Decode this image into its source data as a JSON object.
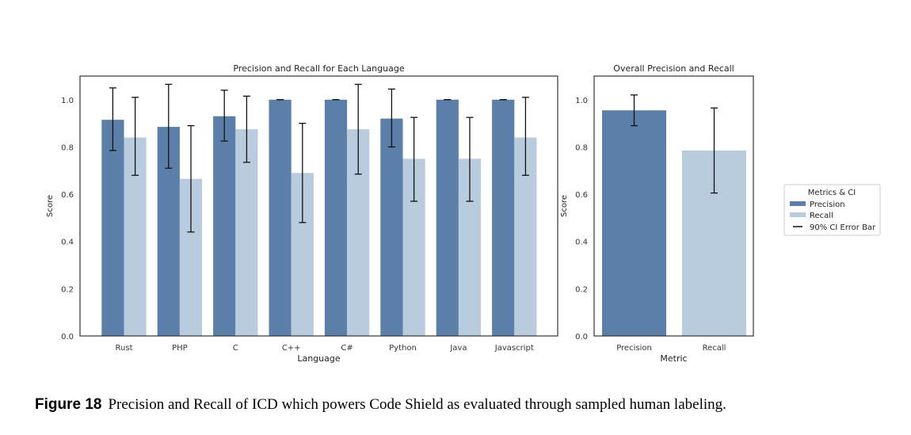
{
  "colors": {
    "precision": "#5b7fa8",
    "recall": "#b9ccdd",
    "error_bar": "#111111",
    "frame": "#333333"
  },
  "caption": {
    "label": "Figure 18",
    "text": "Precision and Recall of ICD which powers Code Shield as evaluated through sampled human labeling."
  },
  "chart_data": [
    {
      "type": "bar",
      "title": "Precision and Recall for Each Language",
      "xlabel": "Language",
      "ylabel": "Score",
      "ylim": [
        0,
        1.1
      ],
      "yticks": [
        "0.0",
        "0.2",
        "0.4",
        "0.6",
        "0.8",
        "1.0"
      ],
      "categories": [
        "Rust",
        "PHP",
        "C",
        "C++",
        "C#",
        "Python",
        "Java",
        "Javascript"
      ],
      "series": [
        {
          "name": "Precision",
          "values": [
            0.915,
            0.885,
            0.93,
            1.0,
            1.0,
            0.92,
            1.0,
            1.0
          ],
          "ci_low": [
            0.785,
            0.71,
            0.825,
            1.0,
            1.0,
            0.8,
            1.0,
            1.0
          ],
          "ci_high": [
            1.05,
            1.065,
            1.04,
            1.0,
            1.0,
            1.045,
            1.0,
            1.0
          ]
        },
        {
          "name": "Recall",
          "values": [
            0.84,
            0.665,
            0.875,
            0.69,
            0.875,
            0.75,
            0.75,
            0.84
          ],
          "ci_low": [
            0.68,
            0.44,
            0.735,
            0.48,
            0.685,
            0.57,
            0.57,
            0.68
          ],
          "ci_high": [
            1.01,
            0.89,
            1.015,
            0.9,
            1.065,
            0.925,
            0.925,
            1.01
          ]
        }
      ],
      "grid": false
    },
    {
      "type": "bar",
      "title": "Overall Precision and Recall",
      "xlabel": "Metric",
      "ylabel": "Score",
      "ylim": [
        0,
        1.1
      ],
      "yticks": [
        "0.0",
        "0.2",
        "0.4",
        "0.6",
        "0.8",
        "1.0"
      ],
      "categories": [
        "Precision",
        "Recall"
      ],
      "values": [
        0.955,
        0.785
      ],
      "ci_low": [
        0.89,
        0.605
      ],
      "ci_high": [
        1.02,
        0.965
      ],
      "grid": false
    }
  ],
  "legend": {
    "title": "Metrics & CI",
    "placement": "right",
    "entries": [
      "Precision",
      "Recall",
      "90% CI Error Bar"
    ]
  }
}
